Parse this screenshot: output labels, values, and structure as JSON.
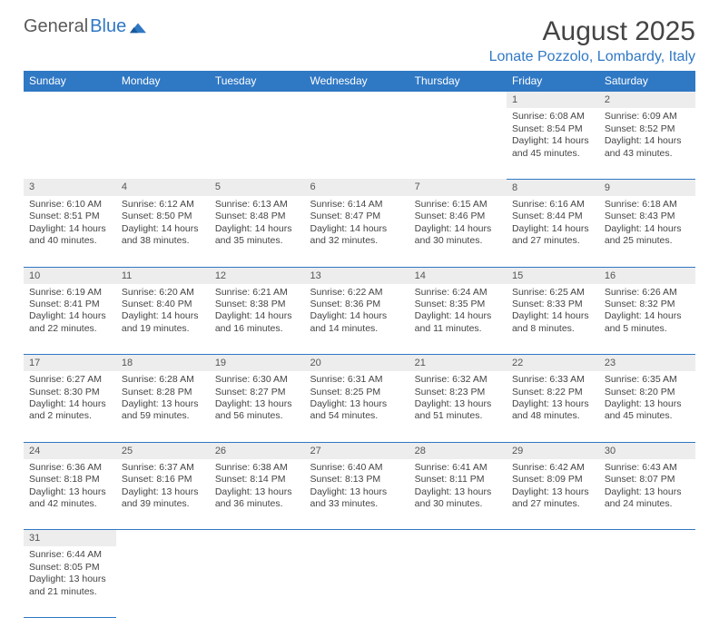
{
  "logo": {
    "text1": "General",
    "text2": "Blue"
  },
  "title": "August 2025",
  "location": "Lonate Pozzolo, Lombardy, Italy",
  "colors": {
    "header_bg": "#2f78c4",
    "header_text": "#ffffff",
    "daynum_bg": "#ededed",
    "border": "#2f78c4",
    "text": "#444444",
    "logo_gray": "#5a5a5a",
    "logo_blue": "#2f78c4"
  },
  "weekdays": [
    "Sunday",
    "Monday",
    "Tuesday",
    "Wednesday",
    "Thursday",
    "Friday",
    "Saturday"
  ],
  "weeks": [
    [
      null,
      null,
      null,
      null,
      null,
      {
        "d": "1",
        "sr": "6:08 AM",
        "ss": "8:54 PM",
        "dl": "14 hours and 45 minutes."
      },
      {
        "d": "2",
        "sr": "6:09 AM",
        "ss": "8:52 PM",
        "dl": "14 hours and 43 minutes."
      }
    ],
    [
      {
        "d": "3",
        "sr": "6:10 AM",
        "ss": "8:51 PM",
        "dl": "14 hours and 40 minutes."
      },
      {
        "d": "4",
        "sr": "6:12 AM",
        "ss": "8:50 PM",
        "dl": "14 hours and 38 minutes."
      },
      {
        "d": "5",
        "sr": "6:13 AM",
        "ss": "8:48 PM",
        "dl": "14 hours and 35 minutes."
      },
      {
        "d": "6",
        "sr": "6:14 AM",
        "ss": "8:47 PM",
        "dl": "14 hours and 32 minutes."
      },
      {
        "d": "7",
        "sr": "6:15 AM",
        "ss": "8:46 PM",
        "dl": "14 hours and 30 minutes."
      },
      {
        "d": "8",
        "sr": "6:16 AM",
        "ss": "8:44 PM",
        "dl": "14 hours and 27 minutes."
      },
      {
        "d": "9",
        "sr": "6:18 AM",
        "ss": "8:43 PM",
        "dl": "14 hours and 25 minutes."
      }
    ],
    [
      {
        "d": "10",
        "sr": "6:19 AM",
        "ss": "8:41 PM",
        "dl": "14 hours and 22 minutes."
      },
      {
        "d": "11",
        "sr": "6:20 AM",
        "ss": "8:40 PM",
        "dl": "14 hours and 19 minutes."
      },
      {
        "d": "12",
        "sr": "6:21 AM",
        "ss": "8:38 PM",
        "dl": "14 hours and 16 minutes."
      },
      {
        "d": "13",
        "sr": "6:22 AM",
        "ss": "8:36 PM",
        "dl": "14 hours and 14 minutes."
      },
      {
        "d": "14",
        "sr": "6:24 AM",
        "ss": "8:35 PM",
        "dl": "14 hours and 11 minutes."
      },
      {
        "d": "15",
        "sr": "6:25 AM",
        "ss": "8:33 PM",
        "dl": "14 hours and 8 minutes."
      },
      {
        "d": "16",
        "sr": "6:26 AM",
        "ss": "8:32 PM",
        "dl": "14 hours and 5 minutes."
      }
    ],
    [
      {
        "d": "17",
        "sr": "6:27 AM",
        "ss": "8:30 PM",
        "dl": "14 hours and 2 minutes."
      },
      {
        "d": "18",
        "sr": "6:28 AM",
        "ss": "8:28 PM",
        "dl": "13 hours and 59 minutes."
      },
      {
        "d": "19",
        "sr": "6:30 AM",
        "ss": "8:27 PM",
        "dl": "13 hours and 56 minutes."
      },
      {
        "d": "20",
        "sr": "6:31 AM",
        "ss": "8:25 PM",
        "dl": "13 hours and 54 minutes."
      },
      {
        "d": "21",
        "sr": "6:32 AM",
        "ss": "8:23 PM",
        "dl": "13 hours and 51 minutes."
      },
      {
        "d": "22",
        "sr": "6:33 AM",
        "ss": "8:22 PM",
        "dl": "13 hours and 48 minutes."
      },
      {
        "d": "23",
        "sr": "6:35 AM",
        "ss": "8:20 PM",
        "dl": "13 hours and 45 minutes."
      }
    ],
    [
      {
        "d": "24",
        "sr": "6:36 AM",
        "ss": "8:18 PM",
        "dl": "13 hours and 42 minutes."
      },
      {
        "d": "25",
        "sr": "6:37 AM",
        "ss": "8:16 PM",
        "dl": "13 hours and 39 minutes."
      },
      {
        "d": "26",
        "sr": "6:38 AM",
        "ss": "8:14 PM",
        "dl": "13 hours and 36 minutes."
      },
      {
        "d": "27",
        "sr": "6:40 AM",
        "ss": "8:13 PM",
        "dl": "13 hours and 33 minutes."
      },
      {
        "d": "28",
        "sr": "6:41 AM",
        "ss": "8:11 PM",
        "dl": "13 hours and 30 minutes."
      },
      {
        "d": "29",
        "sr": "6:42 AM",
        "ss": "8:09 PM",
        "dl": "13 hours and 27 minutes."
      },
      {
        "d": "30",
        "sr": "6:43 AM",
        "ss": "8:07 PM",
        "dl": "13 hours and 24 minutes."
      }
    ],
    [
      {
        "d": "31",
        "sr": "6:44 AM",
        "ss": "8:05 PM",
        "dl": "13 hours and 21 minutes."
      },
      null,
      null,
      null,
      null,
      null,
      null
    ]
  ],
  "labels": {
    "sunrise": "Sunrise:",
    "sunset": "Sunset:",
    "daylight": "Daylight:"
  }
}
